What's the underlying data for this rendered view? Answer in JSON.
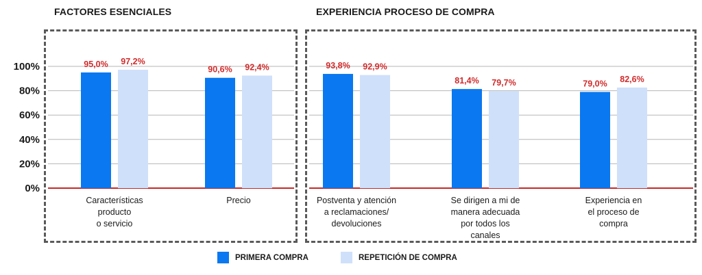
{
  "sections": [
    {
      "title": "FACTORES ESENCIALES"
    },
    {
      "title": "EXPERIENCIA PROCESO DE COMPRA"
    }
  ],
  "legend": [
    {
      "label": "PRIMERA COMPRA",
      "color": "#0a78f0"
    },
    {
      "label": "REPETICIÓN DE COMPRA",
      "color": "#cfe0fb"
    }
  ],
  "colors": {
    "value_label": "#d12b2b",
    "baseline": "#c62828",
    "gridline": "#b5b5b5"
  },
  "chart_data": {
    "type": "bar",
    "ylim": [
      0,
      100
    ],
    "yticks": [
      "0%",
      "20%",
      "40%",
      "60%",
      "80%",
      "100%"
    ],
    "grid": true,
    "legend_position": "bottom",
    "series": [
      {
        "name": "PRIMERA COMPRA"
      },
      {
        "name": "REPETICIÓN DE COMPRA"
      }
    ],
    "categories": [
      {
        "label_lines": [
          "Características",
          "producto",
          "o servicio"
        ],
        "values": [
          95.0,
          97.2
        ],
        "labels": [
          "95,0%",
          "97,2%"
        ]
      },
      {
        "label_lines": [
          "Precio"
        ],
        "values": [
          90.6,
          92.4
        ],
        "labels": [
          "90,6%",
          "92,4%"
        ]
      },
      {
        "label_lines": [
          "Postventa y atención",
          "a reclamaciones/",
          "devoluciones"
        ],
        "values": [
          93.8,
          92.9
        ],
        "labels": [
          "93,8%",
          "92,9%"
        ]
      },
      {
        "label_lines": [
          "Se dirigen a mi de",
          "manera adecuada",
          "por todos los",
          "canales"
        ],
        "values": [
          81.4,
          79.7
        ],
        "labels": [
          "81,4%",
          "79,7%"
        ]
      },
      {
        "label_lines": [
          "Experiencia en",
          "el proceso de",
          "compra"
        ],
        "values": [
          79.0,
          82.6
        ],
        "labels": [
          "79,0%",
          "82,6%"
        ]
      }
    ]
  }
}
